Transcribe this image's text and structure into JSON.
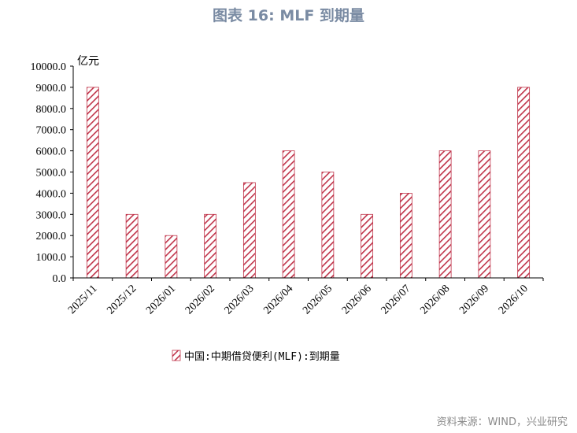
{
  "title": "图表 16: MLF 到期量",
  "source": "资料来源：WIND，兴业研究",
  "colors": {
    "bar_stroke": "#c0344a",
    "bar_hatch": "#c0344a",
    "axis": "#000000",
    "title": "#7a8ba3"
  },
  "chart_data": {
    "type": "bar",
    "title": "图表 16: MLF 到期量",
    "ylabel": "亿元",
    "xlabel": "",
    "ylim": [
      0,
      10000
    ],
    "yticks": [
      "10000.0",
      "9000.0",
      "8000.0",
      "7000.0",
      "6000.0",
      "5000.0",
      "4000.0",
      "3000.0",
      "2000.0",
      "1000.0",
      "0.0"
    ],
    "categories": [
      "2025/11",
      "2025/12",
      "2026/01",
      "2026/02",
      "2026/03",
      "2026/04",
      "2026/05",
      "2026/06",
      "2026/07",
      "2026/08",
      "2026/09",
      "2026/10"
    ],
    "series": [
      {
        "name": "中国:中期借贷便利(MLF):到期量",
        "values": [
          9000,
          3000,
          2000,
          3000,
          4500,
          6000,
          5000,
          3000,
          4000,
          6000,
          6000,
          9000
        ]
      }
    ],
    "legend_position": "bottom",
    "grid": false,
    "pattern": "diagonal-hatch"
  }
}
